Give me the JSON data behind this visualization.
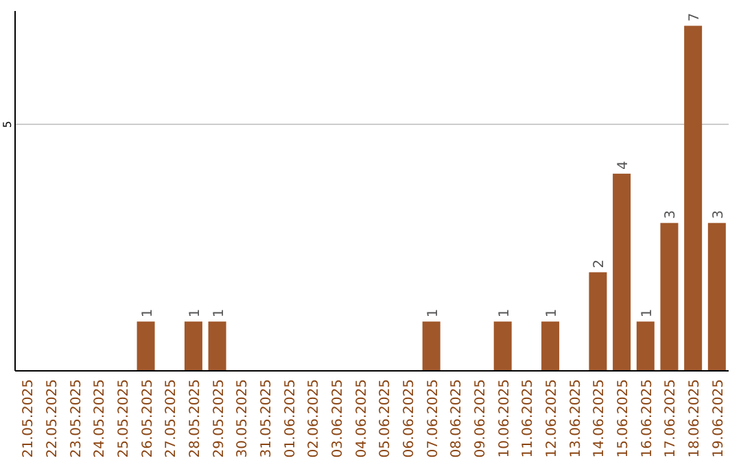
{
  "chart_data": {
    "type": "bar",
    "categories": [
      "21.05.2025",
      "22.05.2025",
      "23.05.2025",
      "24.05.2025",
      "25.05.2025",
      "26.05.2025",
      "27.05.2025",
      "28.05.2025",
      "29.05.2025",
      "30.05.2025",
      "31.05.2025",
      "01.06.2025",
      "02.06.2025",
      "03.06.2025",
      "04.06.2025",
      "05.06.2025",
      "06.06.2025",
      "07.06.2025",
      "08.06.2025",
      "09.06.2025",
      "10.06.2025",
      "11.06.2025",
      "12.06.2025",
      "13.06.2025",
      "14.06.2025",
      "15.06.2025",
      "16.06.2025",
      "17.06.2025",
      "18.06.2025",
      "19.06.2025"
    ],
    "values": [
      0,
      0,
      0,
      0,
      0,
      1,
      0,
      1,
      1,
      0,
      0,
      0,
      0,
      0,
      0,
      0,
      0,
      1,
      0,
      0,
      1,
      0,
      1,
      0,
      2,
      4,
      1,
      3,
      7,
      3
    ],
    "value_labels": [
      null,
      null,
      null,
      null,
      null,
      "1",
      null,
      "1",
      "1",
      null,
      null,
      null,
      null,
      null,
      null,
      null,
      null,
      "1",
      null,
      null,
      "1",
      null,
      "1",
      null,
      "2",
      "4",
      "1",
      "3",
      "7",
      "3"
    ],
    "color": "#a0572a",
    "ylim": [
      0,
      7.3
    ],
    "yticks": [
      5
    ],
    "grid": "y"
  }
}
